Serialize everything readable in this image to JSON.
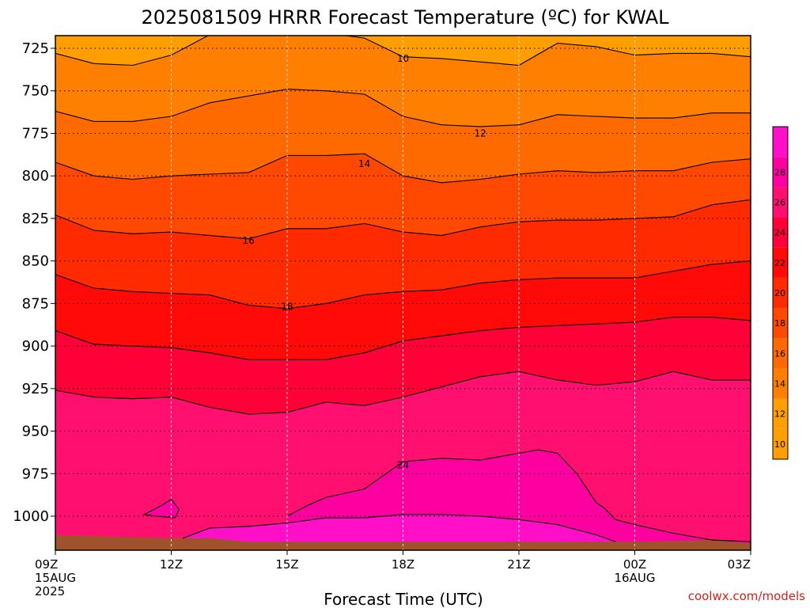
{
  "chart_data": {
    "type": "contour",
    "title": "2025081509 HRRR Forecast Temperature (ºC) for KWAL",
    "xlabel": "Forecast Time (UTC)",
    "x_ticks": [
      {
        "hour": 0,
        "label": "09Z",
        "sub": [
          "15AUG",
          "2025"
        ]
      },
      {
        "hour": 3,
        "label": "12Z",
        "sub": []
      },
      {
        "hour": 6,
        "label": "15Z",
        "sub": []
      },
      {
        "hour": 9,
        "label": "18Z",
        "sub": []
      },
      {
        "hour": 12,
        "label": "21Z",
        "sub": []
      },
      {
        "hour": 15,
        "label": "00Z",
        "sub": [
          "16AUG"
        ]
      },
      {
        "hour": 18,
        "label": "03Z",
        "sub": []
      }
    ],
    "y_ticks": [
      725,
      750,
      775,
      800,
      825,
      850,
      875,
      900,
      925,
      950,
      975,
      1000
    ],
    "levels": [
      10,
      12,
      14,
      16,
      18,
      20,
      22,
      24,
      26,
      28
    ],
    "colorbar_labels": [
      10,
      12,
      14,
      16,
      18,
      20,
      22,
      24,
      26,
      28
    ],
    "colors": [
      "#ff9e00",
      "#ff8000",
      "#ff6a00",
      "#ff4800",
      "#ff2a00",
      "#ff0a08",
      "#ff0038",
      "#ff1070",
      "#ff00a0",
      "#ff10c8"
    ],
    "ground_color": "#a0522d",
    "contour_labels": [
      {
        "text": "10",
        "hour": 9.0,
        "pressure": 731
      },
      {
        "text": "12",
        "hour": 11.0,
        "pressure": 775
      },
      {
        "text": "14",
        "hour": 8.0,
        "pressure": 793
      },
      {
        "text": "16",
        "hour": 5.0,
        "pressure": 838
      },
      {
        "text": "18",
        "hour": 6.0,
        "pressure": 877
      },
      {
        "text": "24",
        "hour": 9.0,
        "pressure": 970
      }
    ],
    "isotherms": [
      {
        "value": 10,
        "hours": [
          0,
          1,
          2,
          3,
          4,
          5,
          6,
          7,
          8,
          9,
          10,
          11,
          12,
          13,
          14,
          15,
          16,
          17,
          18
        ],
        "pressure": [
          728,
          734,
          735,
          729,
          717,
          714,
          715,
          716,
          719,
          730,
          731,
          733,
          735,
          722,
          724,
          729,
          728,
          728,
          730
        ]
      },
      {
        "value": 12,
        "hours": [
          0,
          1,
          2,
          3,
          4,
          5,
          6,
          7,
          8,
          9,
          10,
          11,
          12,
          13,
          14,
          15,
          16,
          17,
          18
        ],
        "pressure": [
          762,
          768,
          768,
          765,
          757,
          753,
          749,
          750,
          752,
          765,
          770,
          771,
          770,
          764,
          765,
          766,
          766,
          763,
          763
        ]
      },
      {
        "value": 14,
        "hours": [
          0,
          1,
          2,
          3,
          4,
          5,
          6,
          7,
          8,
          9,
          10,
          11,
          12,
          13,
          14,
          15,
          16,
          17,
          18
        ],
        "pressure": [
          792,
          800,
          802,
          800,
          799,
          798,
          788,
          788,
          787,
          800,
          804,
          802,
          799,
          797,
          798,
          797,
          797,
          792,
          790
        ]
      },
      {
        "value": 16,
        "hours": [
          0,
          1,
          2,
          3,
          4,
          5,
          6,
          7,
          8,
          9,
          10,
          11,
          12,
          13,
          14,
          15,
          16,
          17,
          18
        ],
        "pressure": [
          823,
          832,
          834,
          833,
          835,
          837,
          831,
          831,
          828,
          833,
          835,
          830,
          827,
          826,
          826,
          825,
          824,
          817,
          814
        ]
      },
      {
        "value": 18,
        "hours": [
          0,
          1,
          2,
          3,
          4,
          5,
          6,
          7,
          8,
          9,
          10,
          11,
          12,
          13,
          14,
          15,
          16,
          17,
          18
        ],
        "pressure": [
          858,
          866,
          868,
          869,
          870,
          876,
          878,
          875,
          870,
          868,
          867,
          863,
          861,
          860,
          860,
          860,
          856,
          852,
          850
        ]
      },
      {
        "value": 20,
        "hours": [
          0,
          1,
          2,
          3,
          4,
          5,
          6,
          7,
          8,
          9,
          10,
          11,
          12,
          13,
          14,
          15,
          16,
          17,
          18
        ],
        "pressure": [
          891,
          899,
          900,
          901,
          904,
          908,
          908,
          908,
          904,
          897,
          894,
          891,
          889,
          888,
          887,
          886,
          883,
          883,
          885
        ]
      },
      {
        "value": 22,
        "hours": [
          0,
          1,
          2,
          3,
          4,
          5,
          6,
          7,
          8,
          9,
          10,
          11,
          12,
          13,
          14,
          15,
          16,
          17,
          18
        ],
        "pressure": [
          926,
          930,
          931,
          930,
          936,
          940,
          939,
          933,
          935,
          930,
          924,
          918,
          915,
          920,
          923,
          921,
          915,
          920,
          920
        ]
      },
      {
        "value": 24,
        "hours": [
          6,
          6.5,
          7,
          8,
          9,
          10,
          11,
          12,
          12.5,
          13,
          13.5,
          14,
          14.2,
          14.5,
          15,
          16,
          17,
          18
        ],
        "pressure": [
          1000,
          994,
          989,
          984,
          968,
          966,
          967,
          963,
          961,
          963,
          975,
          992,
          995,
          1002,
          1005,
          1010,
          1014,
          1015
        ]
      },
      {
        "value": 26,
        "hours": [
          3.3,
          4,
          5,
          6,
          7,
          8,
          9,
          10,
          11,
          12,
          13,
          14,
          14.5
        ],
        "pressure": [
          1013,
          1007,
          1006,
          1004,
          1001,
          1001,
          999,
          999,
          1000,
          1002,
          1005,
          1011,
          1015
        ]
      }
    ],
    "small_cell": {
      "value": 24,
      "hours": [
        2.3,
        2.8,
        3.0,
        3.2,
        3.1,
        2.6,
        2.3
      ],
      "pressure": [
        999,
        993,
        990,
        996,
        1001,
        1000,
        999
      ]
    },
    "ground_surface": {
      "hours": [
        0,
        3,
        4,
        5,
        6,
        9,
        12,
        15,
        17,
        18
      ],
      "pressure": [
        1011,
        1013,
        1013,
        1015,
        1015,
        1015,
        1015,
        1015,
        1014,
        1016
      ]
    },
    "credit": "coolwx.com/models"
  }
}
